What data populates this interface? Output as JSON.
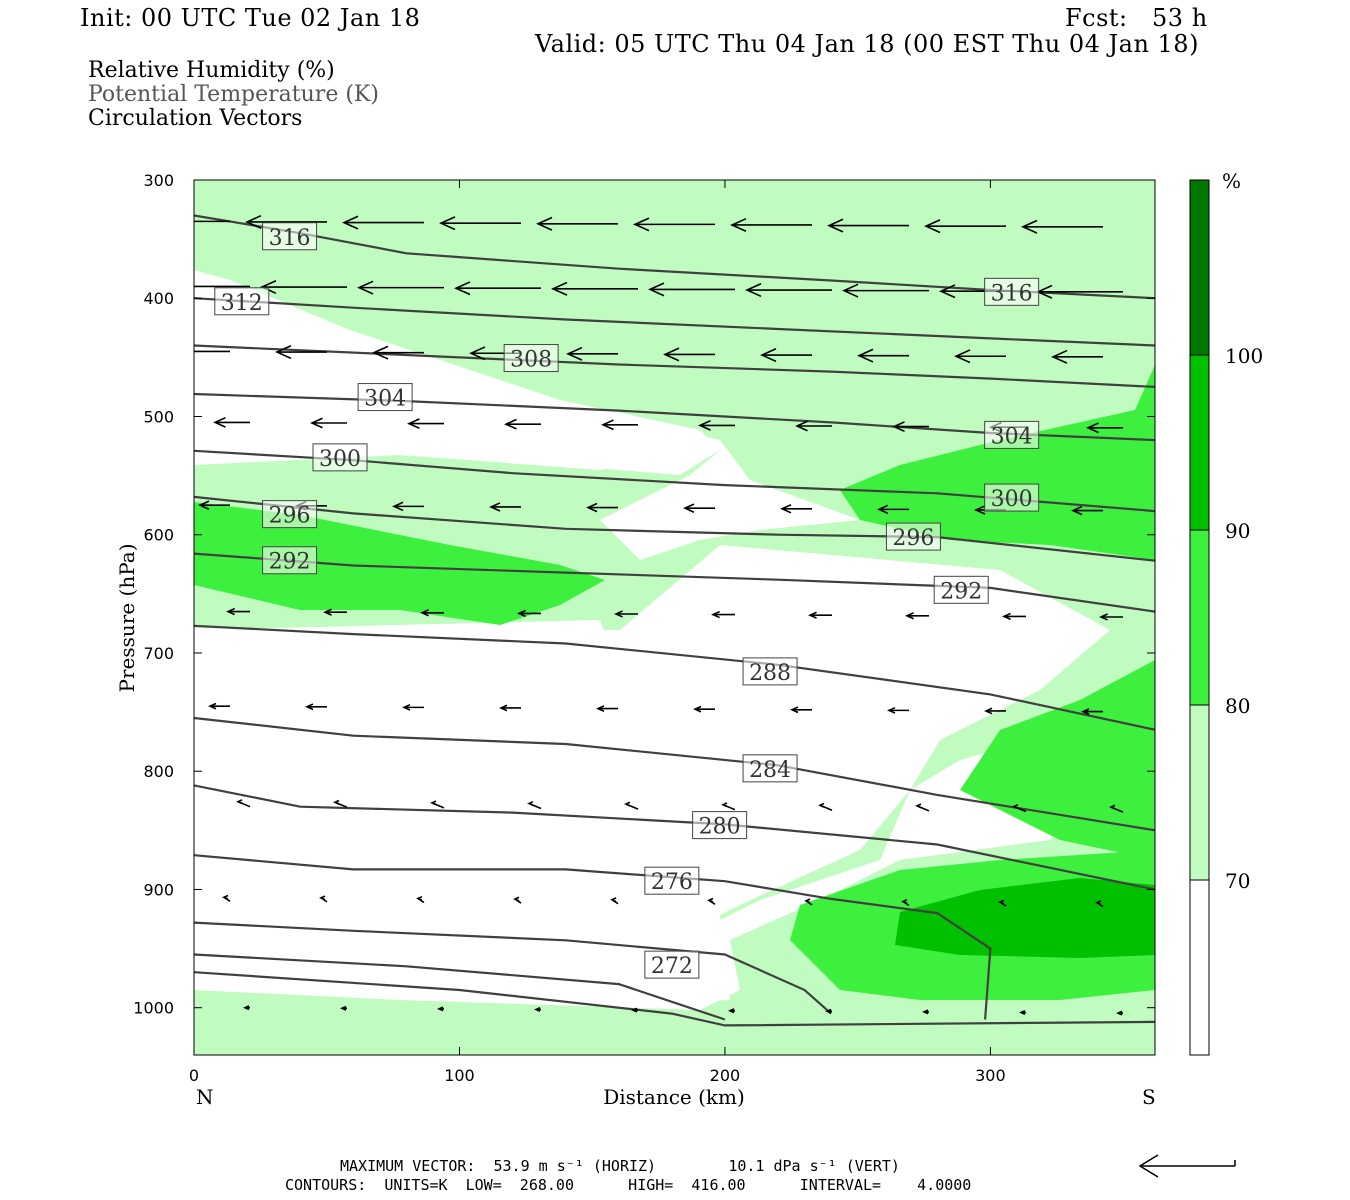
{
  "header": {
    "init": "Init: 00 UTC Tue 02 Jan 18",
    "fcst": "Fcst:   53 h",
    "valid": "Valid: 05 UTC Thu 04 Jan 18 (00 EST Thu 04 Jan 18)"
  },
  "legend": {
    "rh": "Relative Humidity (%)",
    "theta": "Potential Temperature (K)",
    "vectors": "Circulation Vectors"
  },
  "footer": {
    "max_vector": "MAXIMUM VECTOR:  53.9 m s⁻¹ (HORIZ)        10.1 dPa s⁻¹ (VERT)",
    "contours": "CONTOURS:  UNITS=K  LOW=  268.00      HIGH=  416.00      INTERVAL=    4.0000"
  },
  "colors": {
    "rh70": "#c0fcc0",
    "rh80": "#3ef03e",
    "rh90": "#00c000",
    "rh100": "#007800",
    "contour": "#404040"
  },
  "chart_data": {
    "type": "cross-section",
    "xlabel": "Distance (km)",
    "ylabel": "Pressure (hPa)",
    "xlim": [
      0,
      362
    ],
    "ylim": [
      1040,
      300
    ],
    "xticks": [
      0,
      100,
      200,
      300
    ],
    "yticks": [
      300,
      400,
      500,
      600,
      700,
      800,
      900,
      1000
    ],
    "x_end_labels": {
      "left": "N",
      "right": "S"
    },
    "colorbar": {
      "unit": "%",
      "levels": [
        70,
        80,
        90,
        100
      ],
      "labels": [
        "70",
        "80",
        "90",
        "100"
      ]
    },
    "theta_contours": [
      {
        "label": "316",
        "label_pos": [
          36,
          348
        ],
        "points": [
          [
            0,
            330
          ],
          [
            40,
            345
          ],
          [
            80,
            362
          ],
          [
            160,
            375
          ],
          [
            240,
            385
          ],
          [
            300,
            393
          ],
          [
            362,
            400
          ]
        ]
      },
      {
        "label": "316",
        "label_pos": [
          308,
          395
        ],
        "points": []
      },
      {
        "label": "312",
        "label_pos": [
          18,
          403
        ],
        "points": [
          [
            0,
            400
          ],
          [
            60,
            408
          ],
          [
            140,
            418
          ],
          [
            220,
            426
          ],
          [
            300,
            434
          ],
          [
            362,
            440
          ]
        ]
      },
      {
        "label": "308",
        "label_pos": [
          127,
          451
        ],
        "points": [
          [
            0,
            440
          ],
          [
            80,
            448
          ],
          [
            160,
            456
          ],
          [
            240,
            462
          ],
          [
            300,
            468
          ],
          [
            362,
            475
          ]
        ]
      },
      {
        "label": "304",
        "label_pos": [
          72,
          484
        ],
        "points": [
          [
            0,
            481
          ],
          [
            80,
            487
          ],
          [
            160,
            495
          ],
          [
            240,
            505
          ],
          [
            300,
            514
          ],
          [
            362,
            520
          ]
        ]
      },
      {
        "label": "304",
        "label_pos": [
          308,
          516
        ],
        "points": []
      },
      {
        "label": "300",
        "label_pos": [
          55,
          535
        ],
        "points": [
          [
            0,
            529
          ],
          [
            60,
            537
          ],
          [
            120,
            548
          ],
          [
            200,
            558
          ],
          [
            280,
            565
          ],
          [
            362,
            580
          ]
        ]
      },
      {
        "label": "300",
        "label_pos": [
          308,
          569
        ],
        "points": []
      },
      {
        "label": "296",
        "label_pos": [
          36,
          583
        ],
        "points": [
          [
            0,
            568
          ],
          [
            60,
            582
          ],
          [
            140,
            595
          ],
          [
            220,
            600
          ],
          [
            280,
            602
          ],
          [
            362,
            622
          ]
        ]
      },
      {
        "label": "296",
        "label_pos": [
          271,
          602
        ],
        "points": []
      },
      {
        "label": "292",
        "label_pos": [
          36,
          622
        ],
        "points": [
          [
            0,
            616
          ],
          [
            60,
            626
          ],
          [
            140,
            632
          ],
          [
            220,
            638
          ],
          [
            300,
            645
          ],
          [
            362,
            665
          ]
        ]
      },
      {
        "label": "292",
        "label_pos": [
          289,
          647
        ],
        "points": []
      },
      {
        "label": "288",
        "label_pos": [
          217,
          716
        ],
        "points": [
          [
            0,
            677
          ],
          [
            60,
            684
          ],
          [
            140,
            692
          ],
          [
            220,
            710
          ],
          [
            300,
            735
          ],
          [
            362,
            765
          ]
        ]
      },
      {
        "label": "284",
        "label_pos": [
          217,
          798
        ],
        "points": [
          [
            0,
            755
          ],
          [
            60,
            770
          ],
          [
            140,
            777
          ],
          [
            220,
            795
          ],
          [
            280,
            820
          ],
          [
            362,
            850
          ]
        ]
      },
      {
        "label": "280",
        "label_pos": [
          198,
          846
        ],
        "points": [
          [
            0,
            812
          ],
          [
            40,
            830
          ],
          [
            120,
            835
          ],
          [
            200,
            845
          ],
          [
            280,
            862
          ],
          [
            362,
            900
          ]
        ]
      },
      {
        "label": "276",
        "label_pos": [
          180,
          893
        ],
        "points": [
          [
            0,
            871
          ],
          [
            60,
            883
          ],
          [
            140,
            883
          ],
          [
            200,
            893
          ],
          [
            240,
            908
          ],
          [
            280,
            920
          ],
          [
            300,
            950
          ],
          [
            298,
            1010
          ]
        ]
      },
      {
        "label": "272",
        "label_pos": [
          180,
          964
        ],
        "points": [
          [
            0,
            928
          ],
          [
            60,
            935
          ],
          [
            140,
            943
          ],
          [
            200,
            955
          ],
          [
            230,
            985
          ],
          [
            240,
            1005
          ]
        ]
      },
      {
        "label": "",
        "label_pos": null,
        "points": [
          [
            0,
            955
          ],
          [
            80,
            965
          ],
          [
            160,
            980
          ],
          [
            200,
            1010
          ]
        ]
      },
      {
        "label": "",
        "label_pos": null,
        "points": [
          [
            0,
            970
          ],
          [
            100,
            985
          ],
          [
            180,
            1005
          ],
          [
            200,
            1015
          ],
          [
            362,
            1012
          ]
        ]
      }
    ]
  }
}
